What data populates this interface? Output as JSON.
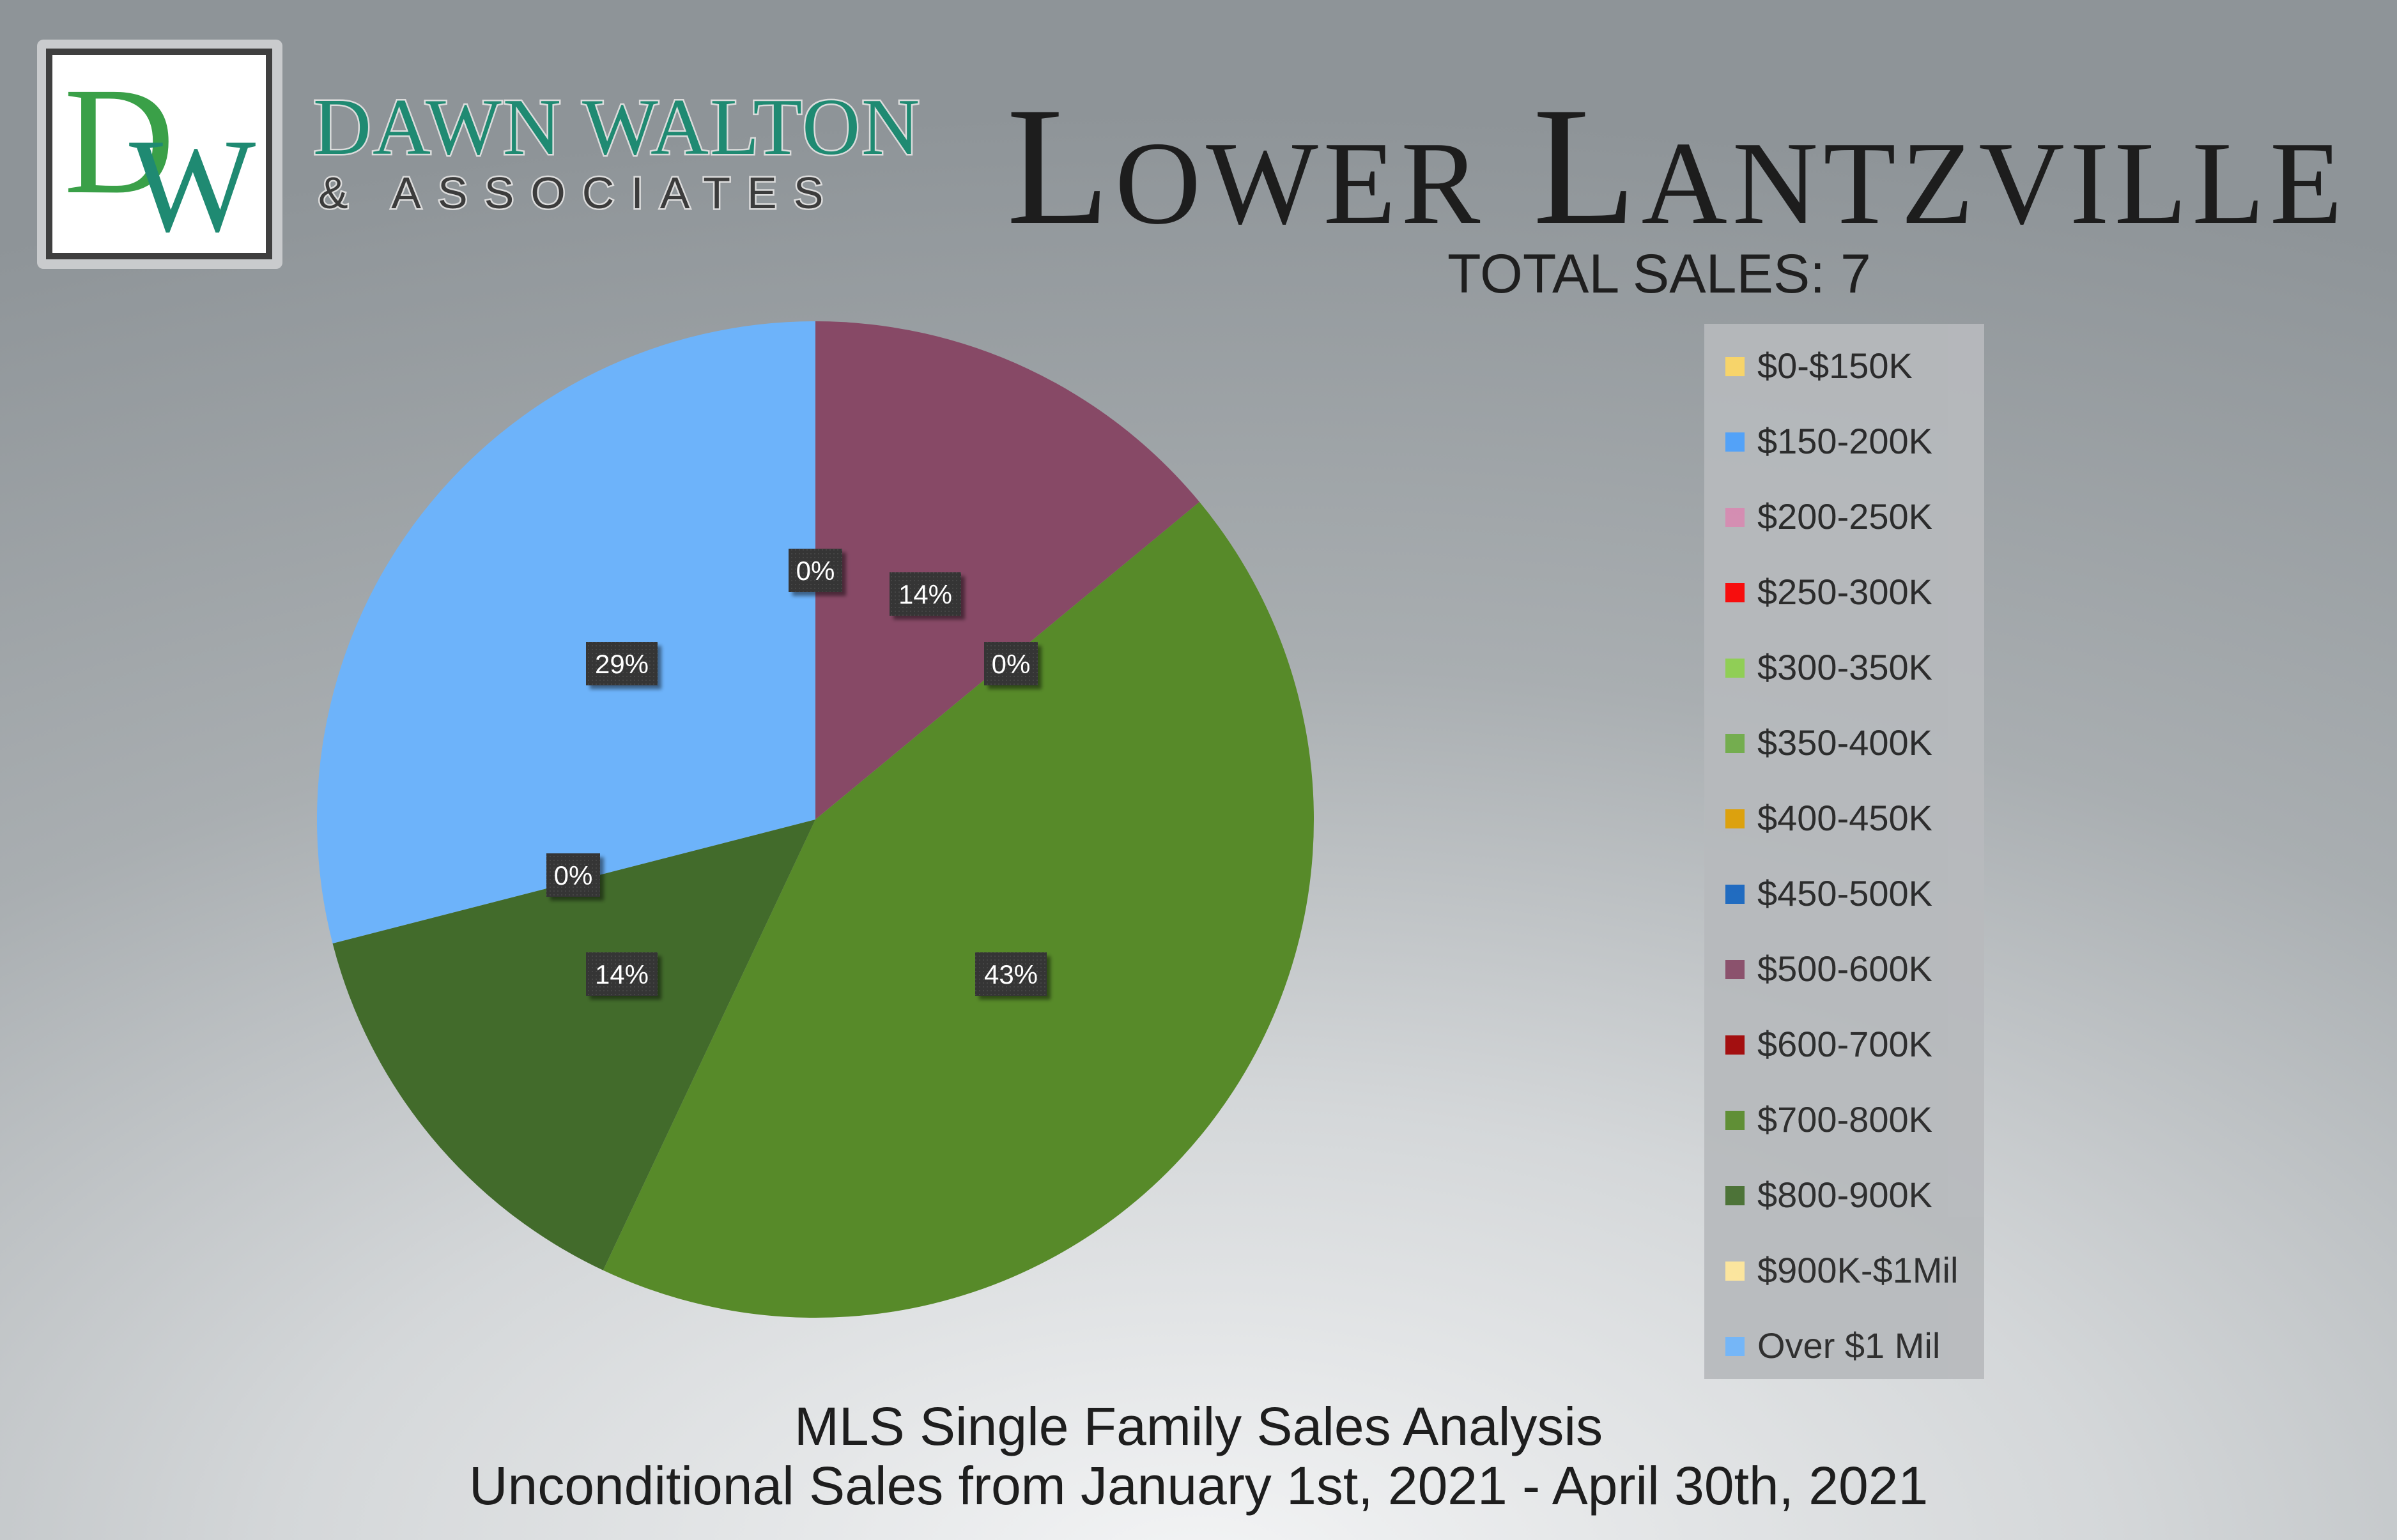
{
  "logo": {
    "monogram": "DW",
    "brand_name": "DAWN WALTON",
    "brand_sub": "& ASSOCIATES",
    "colors": {
      "d": "#3aa048",
      "w": "#1f8a72"
    }
  },
  "header": {
    "title": "Lower Lantzville",
    "total_sales": "TOTAL SALES: 7"
  },
  "footer": {
    "title": "MLS Single Family Sales Analysis",
    "subtitle": "Unconditional Sales from January 1st, 2021 - April 30th, 2021"
  },
  "chart_data": {
    "type": "pie",
    "legend_position": "right",
    "slices": [
      {
        "label": "$0-$150K",
        "value": 0,
        "color": "#ffd966"
      },
      {
        "label": "$150-200K",
        "value": 0,
        "color": "#4da3ff"
      },
      {
        "label": "$200-250K",
        "value": 0,
        "color": "#d98cb3"
      },
      {
        "label": "$250-300K",
        "value": 0,
        "color": "#ff0000"
      },
      {
        "label": "$300-350K",
        "value": 0,
        "color": "#8fd14f"
      },
      {
        "label": "$350-400K",
        "value": 0,
        "color": "#70ad47"
      },
      {
        "label": "$400-450K",
        "value": 0,
        "color": "#e0a000"
      },
      {
        "label": "$450-500K",
        "value": 0,
        "color": "#1565c0"
      },
      {
        "label": "$500-600K",
        "value": 14,
        "color": "#874966"
      },
      {
        "label": "$600-700K",
        "value": 0,
        "color": "#a00000"
      },
      {
        "label": "$700-800K",
        "value": 43,
        "color": "#578a29"
      },
      {
        "label": "$800-900K",
        "value": 14,
        "color": "#426b2b"
      },
      {
        "label": "$900K-$1Mil",
        "value": 0,
        "color": "#ffe699"
      },
      {
        "label": "Over $1 Mil",
        "value": 29,
        "color": "#6db3fa"
      }
    ],
    "data_labels": [
      {
        "slice": "$450-500K",
        "text": "0%"
      },
      {
        "slice": "$500-600K",
        "text": "14%"
      },
      {
        "slice": "$600-700K",
        "text": "0%"
      },
      {
        "slice": "$700-800K",
        "text": "43%"
      },
      {
        "slice": "$800-900K",
        "text": "14%"
      },
      {
        "slice": "$900K-$1Mil",
        "text": "0%"
      },
      {
        "slice": "Over $1 Mil",
        "text": "29%"
      }
    ]
  }
}
